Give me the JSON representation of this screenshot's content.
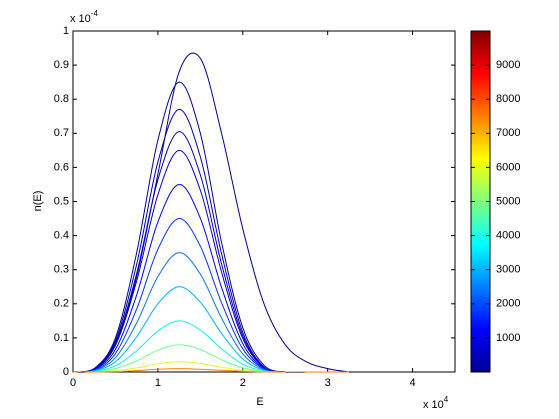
{
  "chart_data": {
    "type": "line",
    "xlabel": "E",
    "ylabel": "n(E)",
    "x_exponent": {
      "base": "x 10",
      "power": "4"
    },
    "y_exponent": {
      "base": "x 10",
      "power": "-4"
    },
    "xlim": [
      0,
      4.5
    ],
    "xticks": [
      0,
      1,
      2,
      3,
      4
    ],
    "ylim": [
      0,
      1
    ],
    "yticks": [
      0,
      0.1,
      0.2,
      0.3,
      0.4,
      0.5,
      0.6,
      0.7,
      0.8,
      0.9,
      1
    ],
    "colorbar": {
      "clim": [
        0,
        10000
      ],
      "ticks": [
        1000,
        2000,
        3000,
        4000,
        5000,
        6000,
        7000,
        8000,
        9000
      ]
    },
    "x": [
      0,
      0.25,
      0.5,
      0.75,
      1,
      1.25,
      1.5,
      1.75,
      2,
      2.25,
      2.5,
      2.75,
      3,
      3.25
    ],
    "series": [
      {
        "color": "#00008f",
        "values": [
          0,
          0.01,
          0.08,
          0.28,
          0.58,
          0.88,
          0.92,
          0.7,
          0.42,
          0.2,
          0.08,
          0.03,
          0.01,
          0
        ]
      },
      {
        "color": "#00009a",
        "values": [
          0,
          0.01,
          0.1,
          0.35,
          0.68,
          0.85,
          0.7,
          0.38,
          0.13,
          0.02,
          0,
          0,
          0,
          0
        ]
      },
      {
        "color": "#0000a8",
        "values": [
          0,
          0.009,
          0.092,
          0.316,
          0.616,
          0.77,
          0.631,
          0.347,
          0.116,
          0.015,
          0,
          0,
          0,
          0
        ]
      },
      {
        "color": "#0000b8",
        "values": [
          0,
          0.008,
          0.085,
          0.289,
          0.564,
          0.705,
          0.578,
          0.317,
          0.106,
          0.014,
          0,
          0,
          0,
          0
        ]
      },
      {
        "color": "#0000cc",
        "values": [
          0,
          0.008,
          0.078,
          0.267,
          0.52,
          0.65,
          0.533,
          0.293,
          0.098,
          0.013,
          0,
          0,
          0,
          0
        ]
      },
      {
        "color": "#0000f0",
        "values": [
          0,
          0.007,
          0.066,
          0.226,
          0.44,
          0.55,
          0.451,
          0.248,
          0.083,
          0.011,
          0,
          0,
          0,
          0
        ]
      },
      {
        "color": "#0030ff",
        "values": [
          0,
          0.005,
          0.054,
          0.185,
          0.36,
          0.45,
          0.369,
          0.203,
          0.068,
          0.009,
          0,
          0,
          0,
          0
        ]
      },
      {
        "color": "#0070ff",
        "values": [
          0,
          0.004,
          0.042,
          0.144,
          0.28,
          0.35,
          0.287,
          0.158,
          0.053,
          0.007,
          0,
          0,
          0,
          0
        ]
      },
      {
        "color": "#00b0ff",
        "values": [
          0,
          0.003,
          0.03,
          0.103,
          0.2,
          0.25,
          0.205,
          0.113,
          0.038,
          0.005,
          0,
          0,
          0,
          0
        ]
      },
      {
        "color": "#10f0ef",
        "values": [
          0,
          0.002,
          0.018,
          0.062,
          0.12,
          0.15,
          0.123,
          0.068,
          0.023,
          0.003,
          0,
          0,
          0,
          0
        ]
      },
      {
        "color": "#70ff90",
        "values": [
          0,
          0.001,
          0.01,
          0.033,
          0.064,
          0.08,
          0.066,
          0.036,
          0.012,
          0.002,
          0,
          0,
          0,
          0
        ]
      },
      {
        "color": "#e0ff20",
        "values": [
          0,
          0,
          0.004,
          0.012,
          0.024,
          0.03,
          0.025,
          0.014,
          0.005,
          0.001,
          0,
          0,
          0,
          0
        ]
      },
      {
        "color": "#ff8000",
        "values": [
          0,
          0,
          0.001,
          0.004,
          0.008,
          0.01,
          0.008,
          0.005,
          0.002,
          0,
          0,
          0,
          0,
          0
        ]
      }
    ]
  }
}
